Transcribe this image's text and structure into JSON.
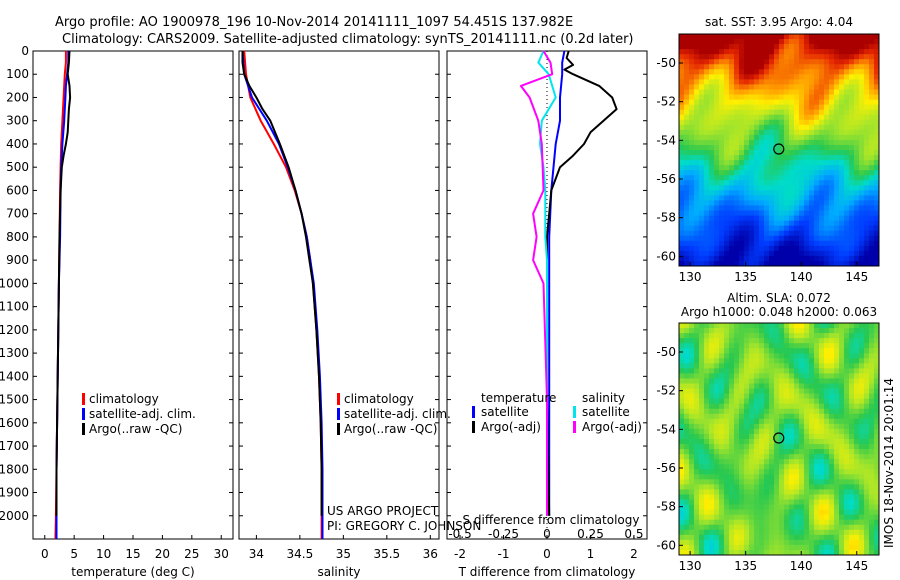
{
  "header": {
    "line1": "Argo profile: AO 1900978_196 10-Nov-2014 20141111_1097 54.451S 137.982E",
    "line2": "Climatology: CARS2009. Satellite-adjusted climatology: synTS_20141111.nc (0.2d later)"
  },
  "colors": {
    "climatology": "#ff0000",
    "satellite_clim": "#0000ff",
    "argo": "#000000",
    "t_satellite": "#0000ff",
    "t_argo": "#000000",
    "s_satellite": "#00e5ee",
    "s_argo": "#ff00ff",
    "map_marker": "#000000"
  },
  "footer": {
    "project": "US ARGO PROJECT",
    "pi": "PI: GREGORY C. JOHNSON",
    "stamp": "IMOS 18-Nov-2014 20:01:14"
  },
  "chart_data": [
    {
      "type": "line",
      "xlabel": "temperature (deg C)",
      "ylabel": "",
      "xlim": [
        -2,
        32
      ],
      "ylim": [
        2100,
        0
      ],
      "xticks": [
        "0",
        "5",
        "10",
        "15",
        "20",
        "25",
        "30"
      ],
      "yticks": [
        "0",
        "100",
        "200",
        "300",
        "400",
        "500",
        "600",
        "700",
        "800",
        "900",
        "1000",
        "1100",
        "1200",
        "1300",
        "1400",
        "1500",
        "1600",
        "1700",
        "1800",
        "1900",
        "2000"
      ],
      "legend": [
        "climatology",
        "satellite-adj. clim.",
        "Argo(..raw -QC)"
      ],
      "series": [
        {
          "name": "climatology",
          "depth": [
            0,
            50,
            100,
            150,
            200,
            250,
            300,
            400,
            500,
            600,
            800,
            1000,
            1200,
            1400,
            1600,
            1800,
            2000,
            2100
          ],
          "values": [
            3.6,
            3.6,
            3.4,
            3.3,
            3.2,
            3.1,
            3.0,
            2.8,
            2.7,
            2.6,
            2.5,
            2.4,
            2.3,
            2.2,
            2.1,
            2.0,
            1.9,
            1.8
          ]
        },
        {
          "name": "satellite-adj. clim.",
          "depth": [
            0,
            50,
            100,
            150,
            200,
            250,
            300,
            400,
            500,
            600,
            800,
            1000,
            1200,
            1400,
            1600,
            1800,
            2000,
            2100
          ],
          "values": [
            4.0,
            4.0,
            3.8,
            3.6,
            3.5,
            3.4,
            3.3,
            3.0,
            2.8,
            2.7,
            2.6,
            2.4,
            2.3,
            2.2,
            2.1,
            2.0,
            2.0,
            2.0
          ]
        },
        {
          "name": "Argo(..raw -QC)",
          "depth": [
            0,
            50,
            100,
            150,
            200,
            250,
            300,
            350,
            400,
            450,
            500,
            600,
            800,
            1000,
            1200,
            1400,
            1600,
            1800,
            2000
          ],
          "values": [
            4.2,
            4.1,
            3.9,
            4.2,
            4.3,
            4.1,
            4.0,
            3.9,
            3.6,
            3.2,
            2.9,
            2.7,
            2.5,
            2.4,
            2.3,
            2.2,
            2.1,
            2.0,
            2.0
          ]
        }
      ]
    },
    {
      "type": "line",
      "xlabel": "salinity",
      "ylabel": "",
      "xlim": [
        33.8,
        36.1
      ],
      "ylim": [
        2100,
        0
      ],
      "xticks": [
        "34",
        "34.5",
        "35",
        "35.5",
        "36"
      ],
      "legend": [
        "climatology",
        "satellite-adj. clim.",
        "Argo(..raw -QC)"
      ],
      "series": [
        {
          "name": "climatology",
          "depth": [
            0,
            100,
            200,
            300,
            400,
            500,
            600,
            700,
            800,
            900,
            1000,
            1200,
            1400,
            1600,
            1800,
            2000,
            2100
          ],
          "values": [
            33.86,
            33.88,
            33.93,
            34.05,
            34.2,
            34.34,
            34.44,
            34.52,
            34.58,
            34.62,
            34.65,
            34.69,
            34.72,
            34.74,
            34.75,
            34.75,
            34.75
          ]
        },
        {
          "name": "satellite-adj. clim.",
          "depth": [
            0,
            100,
            200,
            300,
            400,
            500,
            600,
            700,
            800,
            900,
            1000,
            1200,
            1400,
            1600,
            1800,
            2000,
            2100
          ],
          "values": [
            33.84,
            33.86,
            33.95,
            34.12,
            34.26,
            34.36,
            34.45,
            34.52,
            34.58,
            34.62,
            34.66,
            34.7,
            34.73,
            34.75,
            34.76,
            34.76,
            34.76
          ]
        },
        {
          "name": "Argo(..raw -QC)",
          "depth": [
            0,
            50,
            100,
            150,
            200,
            250,
            300,
            400,
            500,
            600,
            700,
            800,
            900,
            1000,
            1200,
            1400,
            1600,
            1800,
            2000
          ],
          "values": [
            33.84,
            33.84,
            33.86,
            33.92,
            34.0,
            34.07,
            34.16,
            34.27,
            34.37,
            34.45,
            34.52,
            34.57,
            34.61,
            34.65,
            34.69,
            34.72,
            34.74,
            34.75,
            34.75
          ]
        }
      ]
    },
    {
      "type": "line",
      "xlabel": "T difference from climatology",
      "x2label": "S difference from climatology",
      "xlim": [
        -2.3,
        2.3
      ],
      "x2lim": [
        -0.575,
        0.575
      ],
      "ylim": [
        2100,
        0
      ],
      "xticks": [
        "-2",
        "-1",
        "0",
        "1",
        "2"
      ],
      "x2ticks": [
        "-0.5",
        "-0.25",
        "0",
        "0.25",
        "0.5"
      ],
      "legend_t": {
        "title": "temperature",
        "items": [
          "satellite",
          "Argo(-adj)"
        ]
      },
      "legend_s": {
        "title": "salinity",
        "items": [
          "satellite",
          "Argo(-adj)"
        ]
      },
      "series": [
        {
          "name": "T satellite",
          "axis": "T",
          "depth": [
            0,
            50,
            100,
            200,
            300,
            400,
            600,
            800,
            1000,
            1500,
            2000
          ],
          "values": [
            0.4,
            0.35,
            0.35,
            0.3,
            0.3,
            0.2,
            0.1,
            0.05,
            0.05,
            0.05,
            0.05
          ]
        },
        {
          "name": "T Argo(-adj)",
          "axis": "T",
          "depth": [
            0,
            30,
            60,
            80,
            100,
            150,
            200,
            250,
            300,
            350,
            400,
            450,
            500,
            600,
            700,
            800,
            1000,
            1200,
            1500,
            2000
          ],
          "values": [
            0.5,
            0.45,
            0.6,
            0.4,
            0.6,
            1.2,
            1.5,
            1.6,
            1.3,
            1.0,
            0.85,
            0.6,
            0.3,
            0.1,
            0.05,
            0.0,
            0.0,
            0.0,
            0.0,
            0.05
          ]
        },
        {
          "name": "S satellite",
          "axis": "S",
          "depth": [
            0,
            50,
            100,
            200,
            300,
            400,
            500,
            600,
            700,
            800,
            900,
            1000,
            1500,
            2000
          ],
          "values": [
            -0.02,
            -0.05,
            0.01,
            0.05,
            -0.03,
            -0.04,
            -0.02,
            -0.01,
            -0.01,
            -0.01,
            0.0,
            0.0,
            0.0,
            0.0
          ]
        },
        {
          "name": "S Argo(-adj)",
          "axis": "S",
          "depth": [
            0,
            50,
            100,
            150,
            200,
            300,
            400,
            600,
            700,
            800,
            900,
            1000,
            1500,
            2000
          ],
          "values": [
            -0.02,
            0.02,
            0.03,
            -0.15,
            -0.1,
            -0.05,
            -0.03,
            -0.02,
            -0.08,
            -0.06,
            -0.08,
            -0.02,
            0.0,
            0.0
          ]
        }
      ]
    },
    {
      "type": "heatmap",
      "title": "sat. SST: 3.95 Argo: 4.04",
      "xlim": [
        129,
        147
      ],
      "ylim": [
        -60.5,
        -48.5
      ],
      "xticks": [
        "130",
        "135",
        "140",
        "145"
      ],
      "yticks": [
        "-50",
        "-52",
        "-54",
        "-56",
        "-58",
        "-60"
      ],
      "marker": {
        "lon": 137.98,
        "lat": -54.45
      }
    },
    {
      "type": "heatmap",
      "title_line1": "Altim. SLA: 0.072",
      "title_line2": "Argo h1000: 0.048 h2000: 0.063",
      "xlim": [
        129,
        147
      ],
      "ylim": [
        -60.5,
        -48.5
      ],
      "xticks": [
        "130",
        "135",
        "140",
        "145"
      ],
      "yticks": [
        "-50",
        "-52",
        "-54",
        "-56",
        "-58",
        "-60"
      ],
      "marker": {
        "lon": 137.98,
        "lat": -54.45
      }
    }
  ]
}
